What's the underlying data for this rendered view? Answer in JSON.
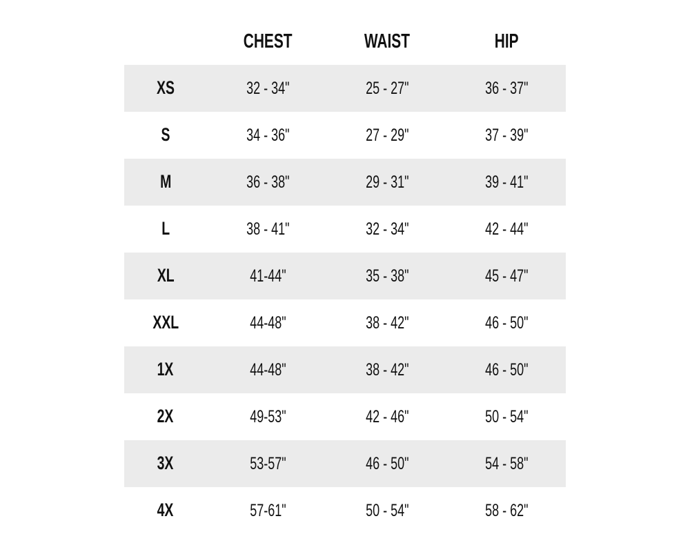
{
  "table": {
    "columns": [
      "",
      "CHEST",
      "WAIST",
      "HIP"
    ],
    "shade_color": "#ebebeb",
    "rows": [
      {
        "size": "XS",
        "chest": "32 - 34\"",
        "waist": "25 - 27\"",
        "hip": "36 - 37\""
      },
      {
        "size": "S",
        "chest": "34 - 36\"",
        "waist": "27 - 29\"",
        "hip": "37 - 39\""
      },
      {
        "size": "M",
        "chest": "36 - 38\"",
        "waist": "29 - 31\"",
        "hip": "39 - 41\""
      },
      {
        "size": "L",
        "chest": "38 - 41\"",
        "waist": "32 - 34\"",
        "hip": "42 - 44\""
      },
      {
        "size": "XL",
        "chest": "41-44\"",
        "waist": "35 - 38\"",
        "hip": "45 - 47\""
      },
      {
        "size": "XXL",
        "chest": "44-48\"",
        "waist": "38 - 42\"",
        "hip": "46 - 50\""
      },
      {
        "size": "1X",
        "chest": "44-48\"",
        "waist": "38 - 42\"",
        "hip": "46 - 50\""
      },
      {
        "size": "2X",
        "chest": "49-53\"",
        "waist": "42 - 46\"",
        "hip": "50 - 54\""
      },
      {
        "size": "3X",
        "chest": "53-57\"",
        "waist": "46 - 50\"",
        "hip": "54 - 58\""
      },
      {
        "size": "4X",
        "chest": "57-61\"",
        "waist": "50 - 54\"",
        "hip": "58 - 62\""
      }
    ]
  }
}
